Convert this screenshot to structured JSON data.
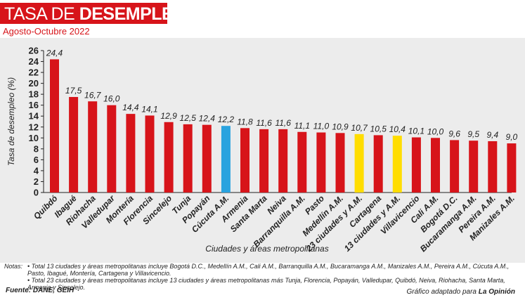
{
  "header": {
    "title_part1": "TASA DE ",
    "title_part2": "DESEMPLEO",
    "subtitle": "Agosto-Octubre 2022"
  },
  "colors": {
    "brand_red": "#d7141a",
    "bar_red": "#d7141a",
    "bar_blue": "#29a3df",
    "bar_yellow": "#ffdd00",
    "plot_background": "#ececec"
  },
  "chart_data": {
    "type": "bar",
    "title": "TASA DE DESEMPLEO",
    "subtitle": "Agosto-Octubre 2022",
    "xlabel": "Ciudades y áreas metropolitanas",
    "ylabel": "Tasa de desempleo (%)",
    "ylim": [
      0,
      26
    ],
    "yticks": [
      0,
      2,
      4,
      6,
      8,
      10,
      12,
      14,
      16,
      18,
      20,
      22,
      24,
      26
    ],
    "grid": false,
    "categories": [
      "Quibdó",
      "Ibagué",
      "Riohacha",
      "Valledupar",
      "Montería",
      "Florencia",
      "Sincelejo",
      "Tunja",
      "Popayán",
      "Cúcuta A.M.",
      "Armenia",
      "Santa Marta",
      "Neiva",
      "Barranquilla A.M.",
      "Pasto",
      "Medellín A.M.",
      "23 ciudades y A.M.",
      "Cartagena",
      "13 ciudades y A.M.",
      "Villavicencio",
      "Cali A.M.",
      "Bogotá D.C.",
      "Bucaramanga A.M.",
      "Pereira A.M.",
      "Manizales A.M."
    ],
    "values": [
      24.4,
      17.5,
      16.7,
      16.0,
      14.4,
      14.1,
      12.9,
      12.5,
      12.4,
      12.2,
      11.8,
      11.6,
      11.6,
      11.1,
      11.0,
      10.9,
      10.7,
      10.5,
      10.4,
      10.1,
      10.0,
      9.6,
      9.5,
      9.4,
      9.0
    ],
    "value_labels": [
      "24,4",
      "17,5",
      "16,7",
      "16,0",
      "14,4",
      "14,1",
      "12,9",
      "12,5",
      "12,4",
      "12,2",
      "11,8",
      "11,6",
      "11,6",
      "11,1",
      "11,0",
      "10,9",
      "10,7",
      "10,5",
      "10,4",
      "10,1",
      "10,0",
      "9,6",
      "9,5",
      "9,4",
      "9,0"
    ],
    "bar_colors": [
      "red",
      "red",
      "red",
      "red",
      "red",
      "red",
      "red",
      "red",
      "red",
      "blue",
      "red",
      "red",
      "red",
      "red",
      "red",
      "red",
      "yellow",
      "red",
      "yellow",
      "red",
      "red",
      "red",
      "red",
      "red",
      "red"
    ]
  },
  "notes": {
    "label": "Notas:",
    "note1": "• Total 13 ciudades y áreas metropolitanas incluye Bogotá D.C., Medellín A.M., Cali A.M., Barranquilla A.M., Bucaramanga A.M., Manizales A.M., Pereira A.M., Cúcuta A.M., Pasto, Ibagué, Montería, Cartagena y Villavicencio.",
    "note2": "• Total 23 ciudades y áreas metropolitanas incluye 13 ciudades y áreas metropolitanas más Tunja, Florencia, Popayán, Valledupar, Quibdó, Neiva, Riohacha, Santa Marta, Armenia y Sincelejo."
  },
  "footer": {
    "source": "Fuente: DANE, GEIH",
    "credit_prefix": "Gráfico adaptado para ",
    "credit_brand": "La Opinión"
  }
}
